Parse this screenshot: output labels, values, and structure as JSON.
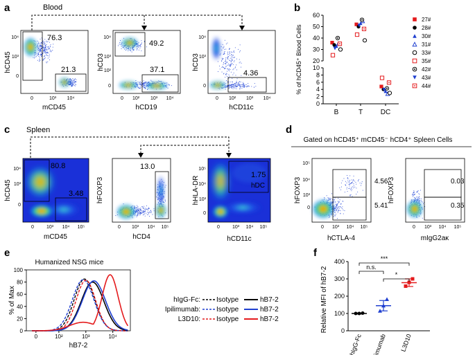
{
  "panels": {
    "a": {
      "letter": "a",
      "title": "Blood",
      "plot1": {
        "y_label": "hCD45",
        "x_label": "mCD45",
        "gate_top": "76.3",
        "gate_bottom": "21.3"
      },
      "plot2": {
        "y_label": "hCD3",
        "x_label": "hCD19",
        "gate_top": "49.2",
        "gate_bottom": "37.1"
      },
      "plot3": {
        "y_label": "hCD3",
        "x_label": "hCD11c",
        "gate": "4.36"
      }
    },
    "c": {
      "letter": "c",
      "title": "Spleen",
      "plot1": {
        "y_label": "hCD45",
        "x_label": "mCD45",
        "gate_top": "80.8",
        "gate_bottom": "3.48"
      },
      "plot2": {
        "y_label": "hFOXP3",
        "x_label": "hCD4",
        "gate": "13.0"
      },
      "plot3": {
        "y_label": "hHLA-DR",
        "x_label": "hCD11c",
        "gate": "1.75",
        "gate_name": "hDC"
      }
    },
    "d": {
      "letter": "d",
      "title": "Gated on hCD45⁺ mCD45⁻ hCD4⁺ Spleen Cells",
      "plot1": {
        "y_label": "hFOXP3",
        "x_label": "hCTLA-4",
        "gate_top": "4.56",
        "gate_bottom": "5.41"
      },
      "plot2": {
        "y_label": "hFOXP3",
        "x_label": "mIgG2aκ",
        "gate_top": "0.03",
        "gate_bottom": "0.35"
      }
    },
    "b": {
      "letter": "b"
    },
    "e": {
      "letter": "e",
      "title": "Humanized NSG mice"
    },
    "f": {
      "letter": "f"
    }
  },
  "ticks": {
    "zero": "0",
    "e2": "10²",
    "e3": "10³",
    "e4": "10⁴",
    "e5": "10⁵"
  },
  "chart_data": [
    {
      "type": "scatter",
      "id": "b",
      "ylabel": "% of hCD45⁺ Blood Cells",
      "categories": [
        "B",
        "T",
        "DC"
      ],
      "y_axis_upper": {
        "range": [
          20,
          60
        ],
        "ticks": [
          "20",
          "30",
          "40",
          "50",
          "60"
        ]
      },
      "y_axis_lower": {
        "range": [
          0,
          10
        ],
        "ticks": [
          "0",
          "2",
          "4",
          "6",
          "8",
          "10"
        ]
      },
      "legend": [
        {
          "label": "27#",
          "marker": "square-filled",
          "color": "#e41a1c"
        },
        {
          "label": "28#",
          "marker": "circle-filled",
          "color": "#000000"
        },
        {
          "label": "30#",
          "marker": "triangle-filled",
          "color": "#1f3fd0"
        },
        {
          "label": "31#",
          "marker": "triangle-open",
          "color": "#1f3fd0"
        },
        {
          "label": "33#",
          "marker": "circle-open",
          "color": "#000000"
        },
        {
          "label": "35#",
          "marker": "square-open",
          "color": "#e41a1c"
        },
        {
          "label": "42#",
          "marker": "circle-dot",
          "color": "#000000"
        },
        {
          "label": "43#",
          "marker": "triangle-down-filled",
          "color": "#1f3fd0"
        },
        {
          "label": "44#",
          "marker": "square-dot",
          "color": "#e41a1c"
        }
      ],
      "series": [
        {
          "name": "27#",
          "values": [
            36,
            52,
            4.8
          ]
        },
        {
          "name": "28#",
          "values": [
            34,
            50,
            4.0
          ]
        },
        {
          "name": "30#",
          "values": [
            33,
            53,
            3.5
          ]
        },
        {
          "name": "31#",
          "values": [
            35,
            55,
            2.8
          ]
        },
        {
          "name": "33#",
          "values": [
            30,
            38,
            3.0
          ]
        },
        {
          "name": "35#",
          "values": [
            25,
            43,
            7.2
          ]
        },
        {
          "name": "42#",
          "values": [
            40,
            56,
            4.3
          ]
        },
        {
          "name": "43#",
          "values": [
            31,
            51,
            3.9
          ]
        },
        {
          "name": "44#",
          "values": [
            35,
            48,
            5.9
          ]
        }
      ]
    },
    {
      "type": "line",
      "id": "e",
      "title": "Humanized NSG mice",
      "xlabel": "hB7-2",
      "ylabel": "% of Max",
      "x_ticks": [
        "0",
        "10²",
        "10³",
        "10⁴"
      ],
      "y_ticks": [
        "0",
        "20",
        "40",
        "60",
        "80",
        "100"
      ],
      "ylim": [
        0,
        100
      ],
      "legend_rows": [
        {
          "group": "hIgG-Fc:",
          "isotype": "Isotype",
          "stain": "hB7-2",
          "color": "#000000"
        },
        {
          "group": "Ipilimumab:",
          "isotype": "Isotype",
          "stain": "hB7-2",
          "color": "#1f3fd0"
        },
        {
          "group": "L3D10:",
          "isotype": "Isotype",
          "stain": "hB7-2",
          "color": "#e41a1c"
        }
      ],
      "series": [
        {
          "name": "hIgG-Fc Isotype",
          "color": "#000000",
          "dashed": true,
          "peak_log10": 2.95,
          "width": 0.38,
          "peak": 85
        },
        {
          "name": "Ipilimumab Isotype",
          "color": "#1f3fd0",
          "dashed": true,
          "peak_log10": 2.9,
          "width": 0.4,
          "peak": 84
        },
        {
          "name": "L3D10 Isotype",
          "color": "#e41a1c",
          "dashed": true,
          "peak_log10": 3.0,
          "width": 0.36,
          "peak": 83
        },
        {
          "name": "hIgG-Fc hB7-2",
          "color": "#000000",
          "dashed": false,
          "peak_log10": 3.25,
          "width": 0.42,
          "peak": 80
        },
        {
          "name": "Ipilimumab hB7-2",
          "color": "#1f3fd0",
          "dashed": false,
          "peak_log10": 3.3,
          "width": 0.43,
          "peak": 82
        },
        {
          "name": "L3D10 hB7-2",
          "color": "#e41a1c",
          "dashed": false,
          "peak_log10": 3.9,
          "width": 0.3,
          "peak": 92
        }
      ]
    },
    {
      "type": "scatter",
      "id": "f",
      "ylabel": "Relative MFI of hB7-2",
      "categories": [
        "hIgG-Fc",
        "Ipilimumab",
        "L3D10"
      ],
      "ylim": [
        0,
        400
      ],
      "y_ticks": [
        "0",
        "100",
        "200",
        "300",
        "400"
      ],
      "colors": [
        "#000000",
        "#1f3fd0",
        "#e41a1c"
      ],
      "means": [
        100,
        145,
        278
      ],
      "errors": [
        3,
        30,
        22
      ],
      "points": [
        [
          100,
          100,
          102
        ],
        [
          115,
          145,
          182
        ],
        [
          258,
          280,
          300
        ]
      ],
      "significance": [
        {
          "pair": [
            0,
            2
          ],
          "label": "***"
        },
        {
          "pair": [
            0,
            1
          ],
          "label": "n.s."
        },
        {
          "pair": [
            1,
            2
          ],
          "label": "*"
        }
      ]
    }
  ]
}
